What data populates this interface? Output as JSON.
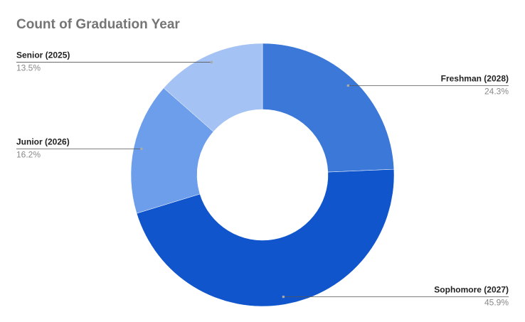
{
  "chart_data": {
    "type": "donut",
    "title": "Count of Graduation Year",
    "categories": [
      "Freshman (2028)",
      "Sophomore (2027)",
      "Junior (2026)",
      "Senior (2025)"
    ],
    "values": [
      24.3,
      45.9,
      16.2,
      13.5
    ],
    "value_labels": [
      "24.3%",
      "45.9%",
      "16.2%",
      "13.5%"
    ],
    "colors": [
      "#3c78d8",
      "#1155cc",
      "#6d9eeb",
      "#a4c2f4"
    ]
  }
}
